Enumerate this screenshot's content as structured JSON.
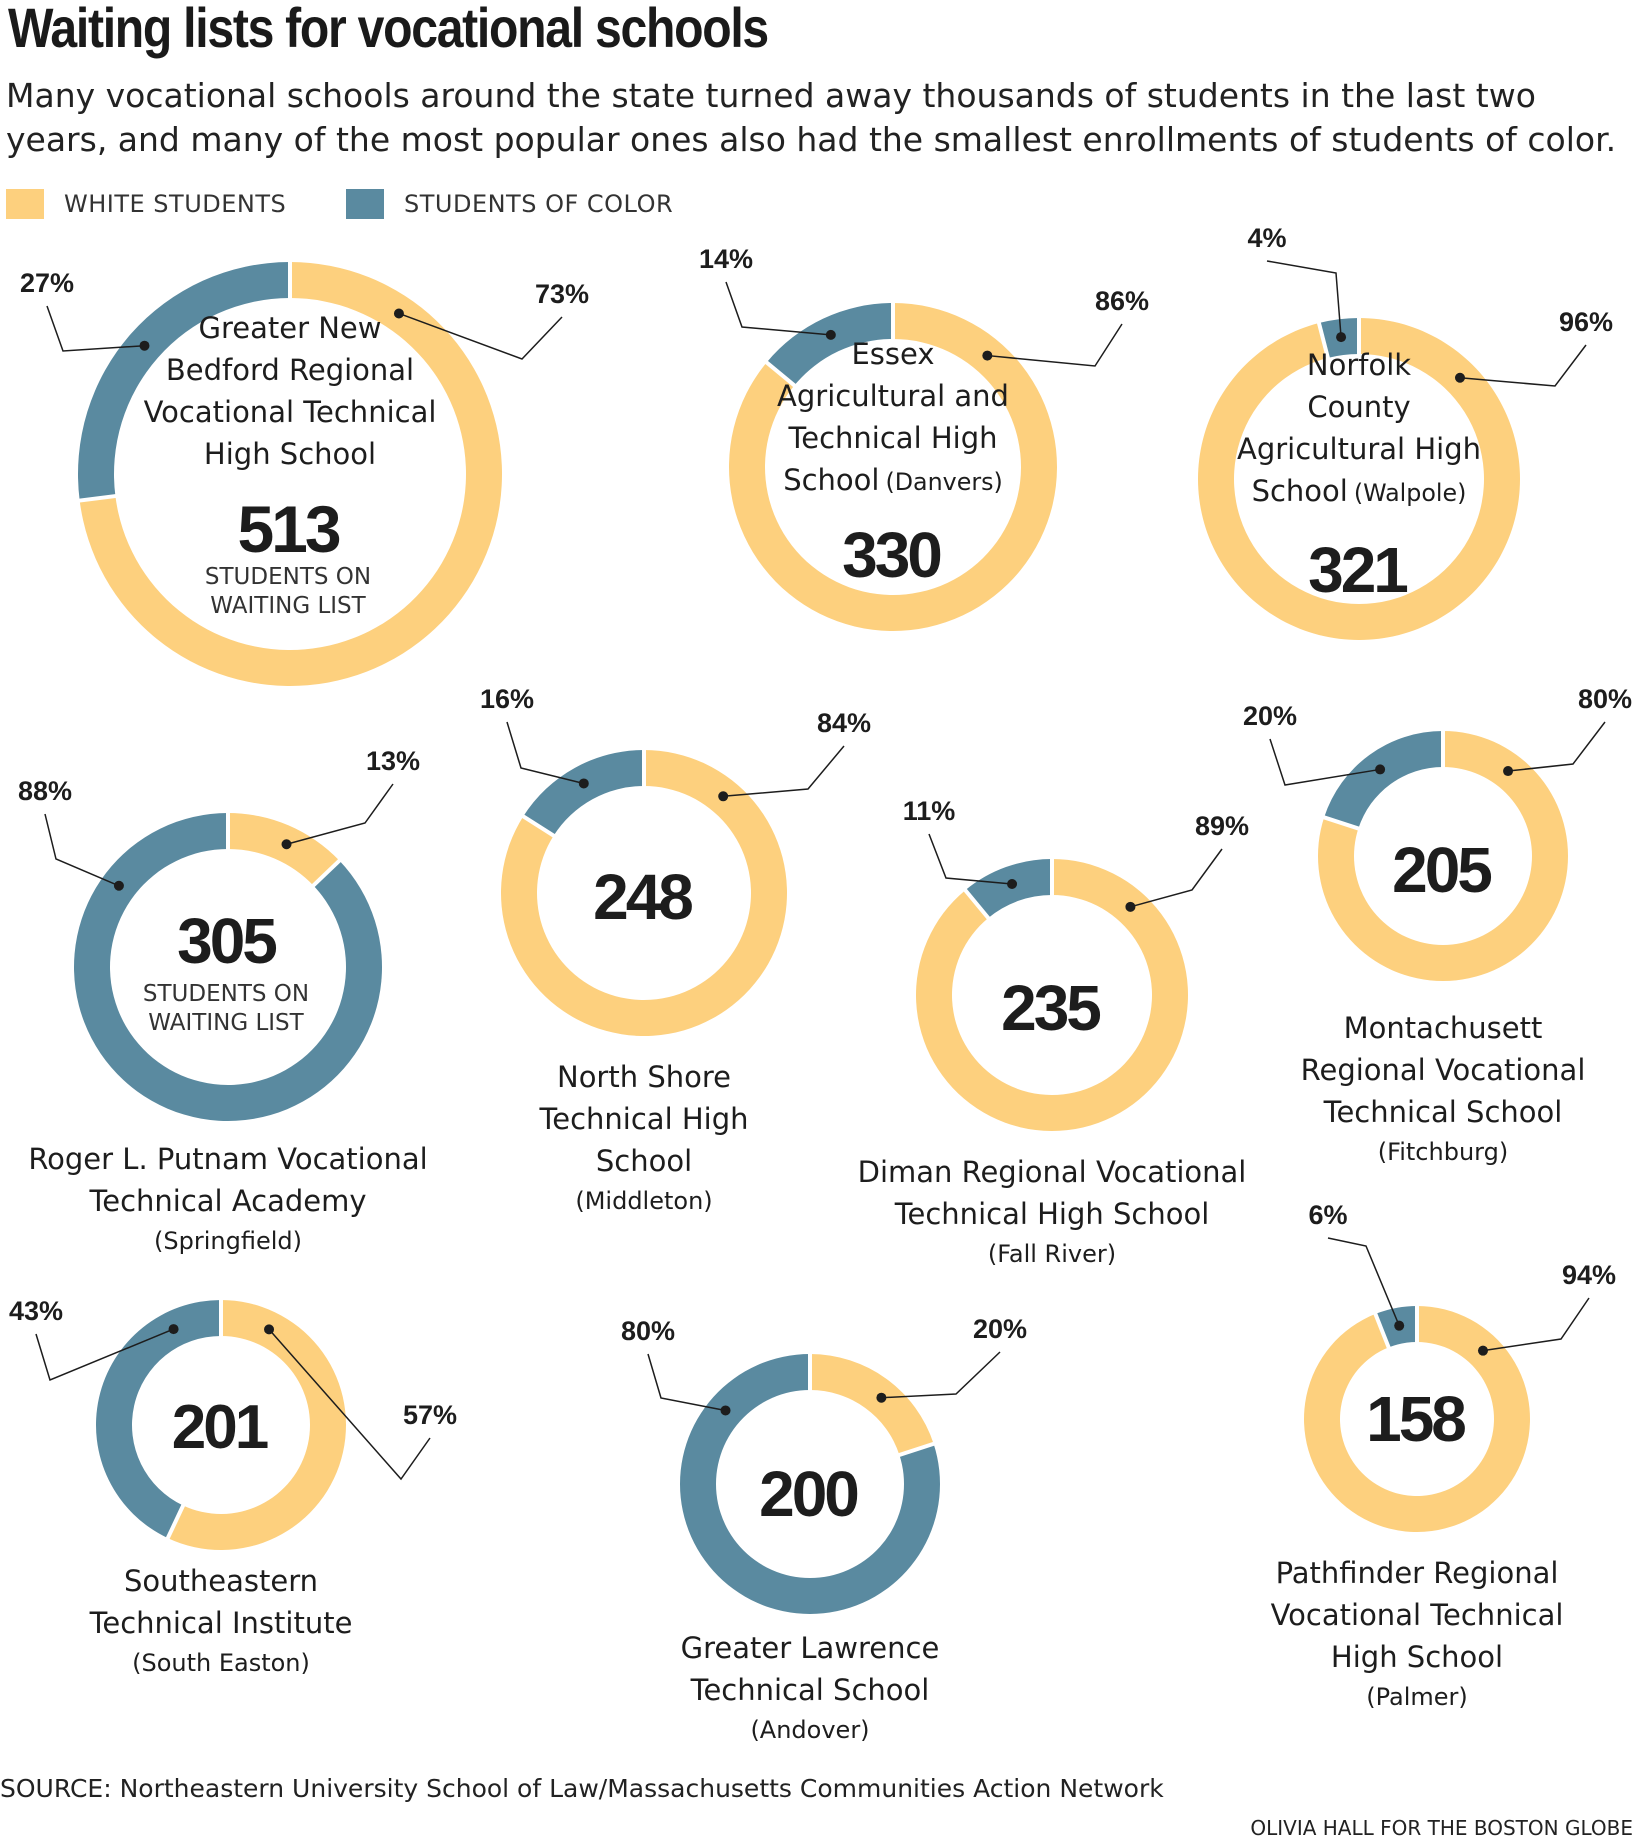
{
  "title": "Waiting lists for vocational schools",
  "subtitle": "Many vocational schools around the state turned away thousands of students in the last two years, and many of the most popular ones also had the smallest enrollments of students of color.",
  "legend": {
    "white_label": "WHITE STUDENTS",
    "color_label": "STUDENTS OF COLOR"
  },
  "colors": {
    "white_students": "#fdd07e",
    "students_of_color": "#5a8aa0",
    "text": "#1d1d1d"
  },
  "source": "SOURCE: Northeastern University School of Law/Massachusetts Communities Action Network",
  "credit": "OLIVIA HALL FOR THE BOSTON GLOBE",
  "chart_data": {
    "type": "pie",
    "variant": "donut",
    "series_names": [
      "WHITE STUDENTS",
      "STUDENTS OF COLOR"
    ],
    "schools": [
      {
        "name_lines": [
          "Greater New",
          "Bedford Regional",
          "Vocational Technical",
          "High School"
        ],
        "town": "",
        "waiting_list": 513,
        "caption_lines": [
          "STUDENTS ON",
          "WAITING LIST"
        ],
        "white_pct": 73,
        "color_pct": 27,
        "white_label": "73%",
        "color_label": "27%"
      },
      {
        "name_lines": [
          "Essex",
          "Agricultural and",
          "Technical High",
          "School"
        ],
        "town": "(Danvers)",
        "waiting_list": 330,
        "caption_lines": [],
        "white_pct": 86,
        "color_pct": 14,
        "white_label": "86%",
        "color_label": "14%"
      },
      {
        "name_lines": [
          "Norfolk",
          "County",
          "Agricultural High",
          "School"
        ],
        "town": "(Walpole)",
        "waiting_list": 321,
        "caption_lines": [],
        "white_pct": 96,
        "color_pct": 4,
        "white_label": "96%",
        "color_label": "4%"
      },
      {
        "name_lines": [
          "Roger L. Putnam Vocational",
          "Technical Academy"
        ],
        "town": "(Springfield)",
        "waiting_list": 305,
        "caption_lines": [
          "STUDENTS ON",
          "WAITING LIST"
        ],
        "white_pct": 13,
        "color_pct": 88,
        "white_label": "13%",
        "color_label": "88%"
      },
      {
        "name_lines": [
          "North Shore",
          "Technical High",
          "School"
        ],
        "town": "(Middleton)",
        "waiting_list": 248,
        "caption_lines": [],
        "white_pct": 84,
        "color_pct": 16,
        "white_label": "84%",
        "color_label": "16%"
      },
      {
        "name_lines": [
          "Diman Regional Vocational",
          "Technical High School"
        ],
        "town": "(Fall River)",
        "waiting_list": 235,
        "caption_lines": [],
        "white_pct": 89,
        "color_pct": 11,
        "white_label": "89%",
        "color_label": "11%"
      },
      {
        "name_lines": [
          "Montachusett",
          "Regional Vocational",
          "Technical School"
        ],
        "town": "(Fitchburg)",
        "waiting_list": 205,
        "caption_lines": [],
        "white_pct": 80,
        "color_pct": 20,
        "white_label": "80%",
        "color_label": "20%"
      },
      {
        "name_lines": [
          "Southeastern",
          "Technical Institute"
        ],
        "town": "(South Easton)",
        "waiting_list": 201,
        "caption_lines": [],
        "white_pct": 57,
        "color_pct": 43,
        "white_label": "57%",
        "color_label": "43%"
      },
      {
        "name_lines": [
          "Greater Lawrence",
          "Technical School"
        ],
        "town": "(Andover)",
        "waiting_list": 200,
        "caption_lines": [],
        "white_pct": 20,
        "color_pct": 80,
        "white_label": "20%",
        "color_label": "80%"
      },
      {
        "name_lines": [
          "Pathfinder Regional",
          "Vocational Technical",
          "High School"
        ],
        "town": "(Palmer)",
        "waiting_list": 158,
        "caption_lines": [],
        "white_pct": 94,
        "color_pct": 6,
        "white_label": "94%",
        "color_label": "6%"
      }
    ]
  }
}
